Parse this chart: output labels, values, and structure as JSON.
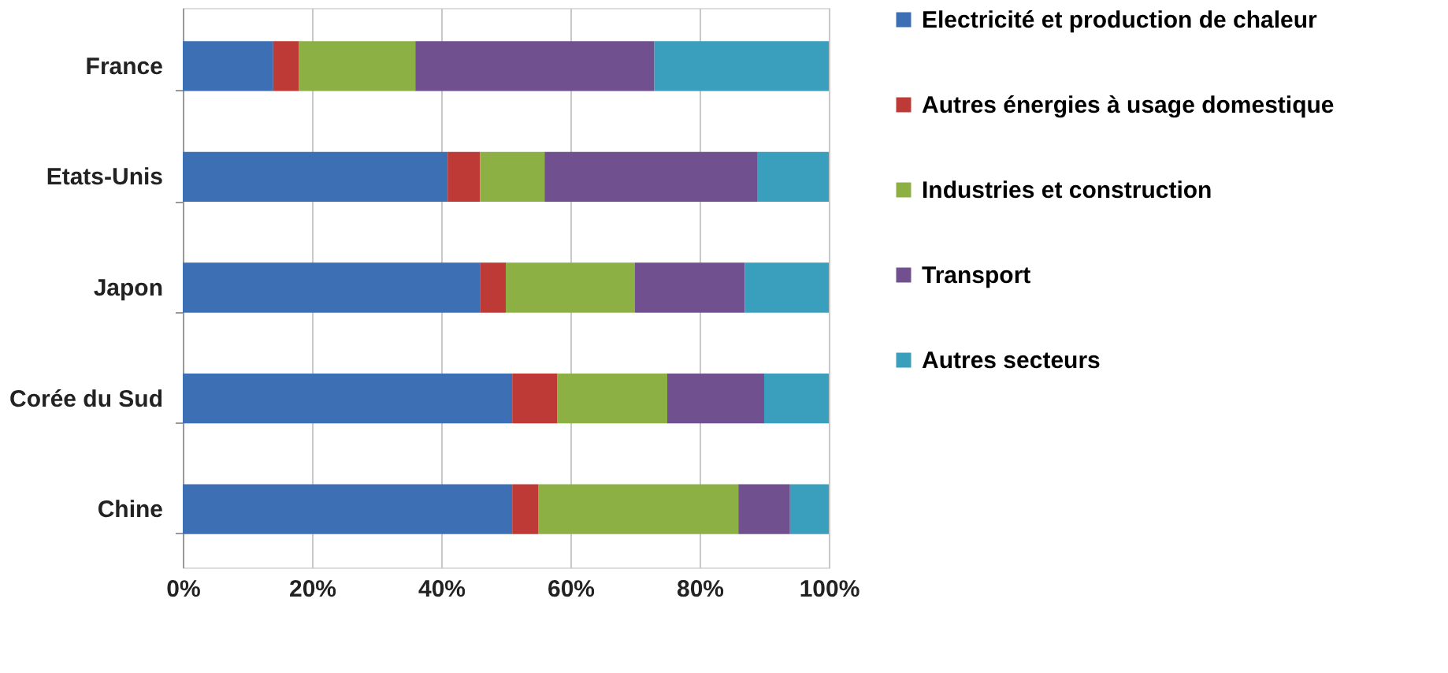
{
  "chart_data": {
    "type": "bar",
    "orientation": "horizontal",
    "stacked": true,
    "categories": [
      "France",
      "Etats-Unis",
      "Japon",
      "Corée du Sud",
      "Chine"
    ],
    "series": [
      {
        "name": "Electricité et production de chaleur",
        "color": "#3d6fb4",
        "values": [
          14,
          41,
          46,
          51,
          51
        ]
      },
      {
        "name": "Autres énergies à usage domestique",
        "color": "#be3a36",
        "values": [
          4,
          5,
          4,
          7,
          4
        ]
      },
      {
        "name": "Industries et construction",
        "color": "#8cb043",
        "values": [
          18,
          10,
          20,
          17,
          31
        ]
      },
      {
        "name": "Transport",
        "color": "#71508f",
        "values": [
          37,
          33,
          17,
          15,
          8
        ]
      },
      {
        "name": "Autres secteurs",
        "color": "#3a9fbc",
        "values": [
          27,
          11,
          13,
          10,
          6
        ]
      }
    ],
    "xlim": [
      0,
      100
    ],
    "xticks": [
      {
        "value": 0,
        "label": "0%"
      },
      {
        "value": 20,
        "label": "20%"
      },
      {
        "value": 40,
        "label": "40%"
      },
      {
        "value": 60,
        "label": "60%"
      },
      {
        "value": 80,
        "label": "80%"
      },
      {
        "value": 100,
        "label": "100%"
      }
    ],
    "grid": "x",
    "legend": "right"
  }
}
